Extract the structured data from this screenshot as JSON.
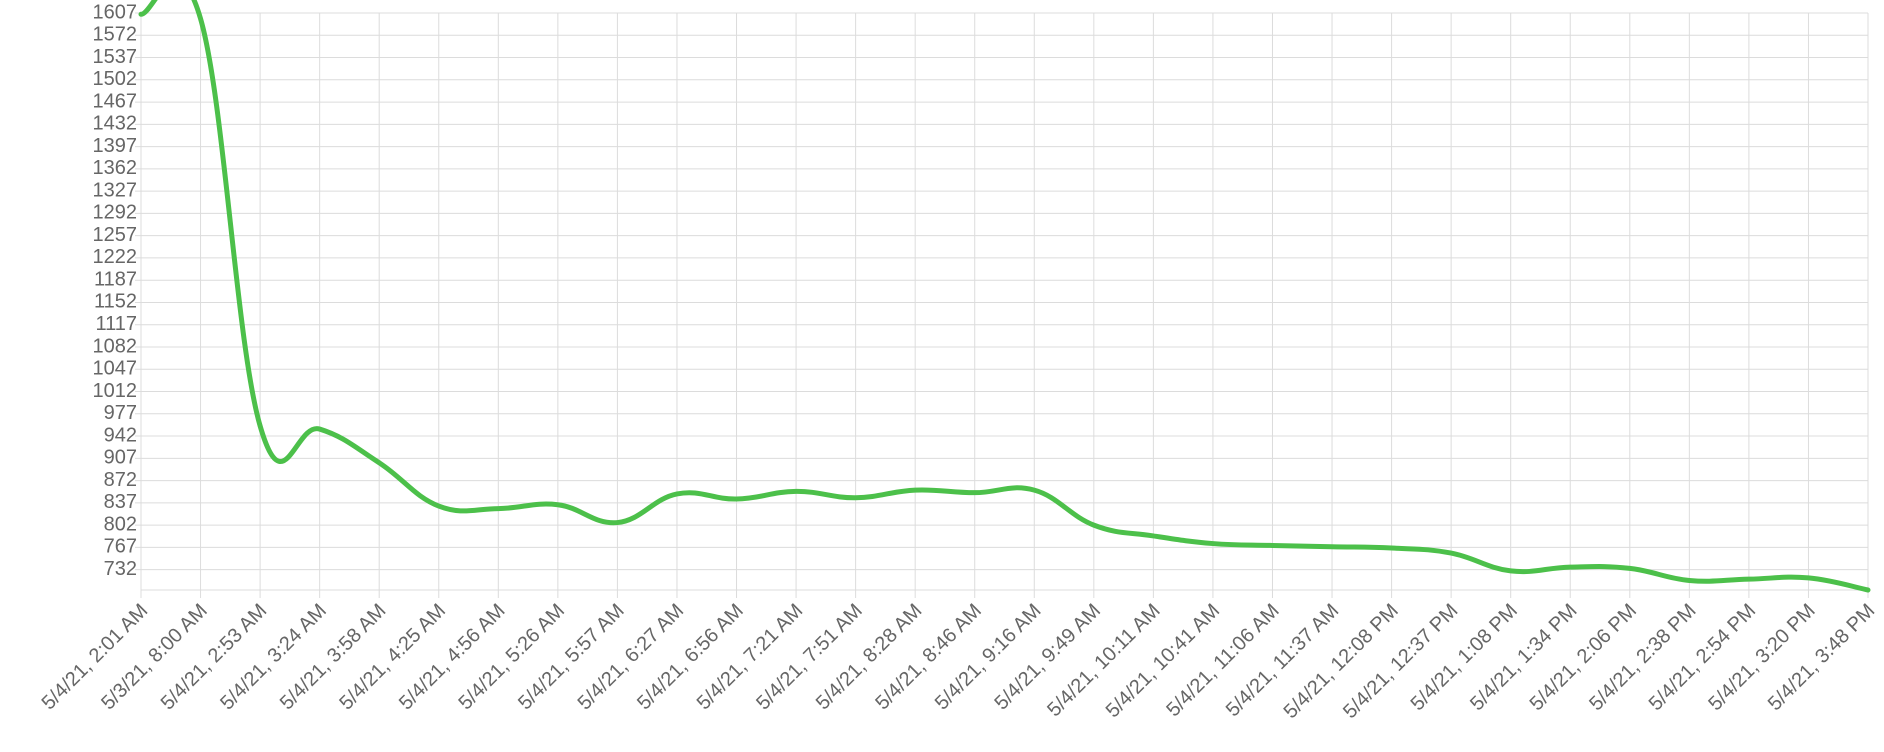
{
  "chart_data": {
    "type": "line",
    "categories": [
      "5/4/21, 2:01 AM",
      "5/3/21, 8:00 AM",
      "5/4/21, 2:53 AM",
      "5/4/21, 3:24 AM",
      "5/4/21, 3:58 AM",
      "5/4/21, 4:25 AM",
      "5/4/21, 4:56 AM",
      "5/4/21, 5:26 AM",
      "5/4/21, 5:57 AM",
      "5/4/21, 6:27 AM",
      "5/4/21, 6:56 AM",
      "5/4/21, 7:21 AM",
      "5/4/21, 7:51 AM",
      "5/4/21, 8:28 AM",
      "5/4/21, 8:46 AM",
      "5/4/21, 9:16 AM",
      "5/4/21, 9:49 AM",
      "5/4/21, 10:11 AM",
      "5/4/21, 10:41 AM",
      "5/4/21, 11:06 AM",
      "5/4/21, 11:37 AM",
      "5/4/21, 12:08 PM",
      "5/4/21, 12:37 PM",
      "5/4/21, 1:08 PM",
      "5/4/21, 1:34 PM",
      "5/4/21, 2:06 PM",
      "5/4/21, 2:38 PM",
      "5/4/21, 2:54 PM",
      "5/4/21, 3:20 PM",
      "5/4/21, 3:48 PM"
    ],
    "values": [
      1605,
      1598,
      958,
      953,
      900,
      832,
      828,
      834,
      806,
      851,
      843,
      855,
      845,
      857,
      853,
      857,
      802,
      785,
      773,
      770,
      768,
      766,
      758,
      730,
      736,
      734,
      715,
      717,
      719,
      700
    ],
    "color": "#4cc04a",
    "ylim": [
      700,
      1607
    ],
    "yticks": [
      732,
      767,
      802,
      837,
      872,
      907,
      942,
      977,
      1012,
      1047,
      1082,
      1117,
      1152,
      1187,
      1222,
      1257,
      1292,
      1327,
      1362,
      1397,
      1432,
      1467,
      1502,
      1537,
      1572,
      1607
    ],
    "grid": true
  }
}
